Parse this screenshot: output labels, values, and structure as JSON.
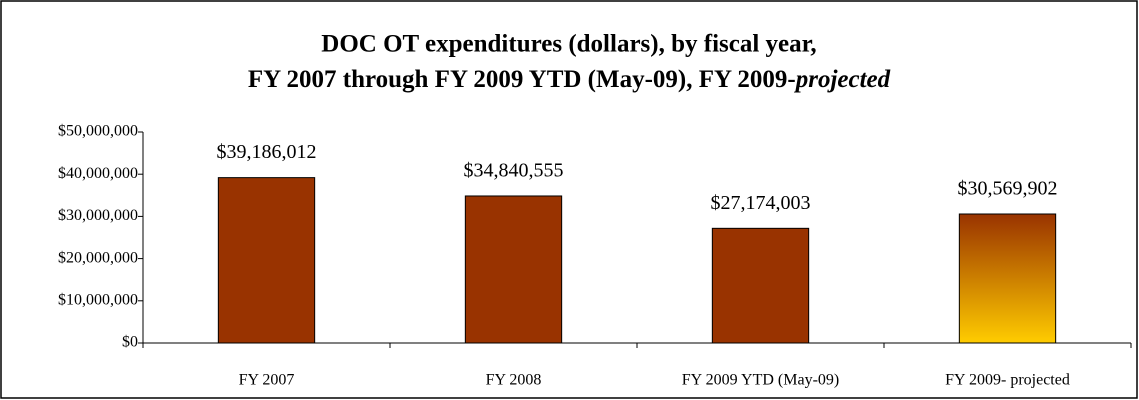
{
  "chart_data": {
    "type": "bar",
    "title": [
      "DOC OT expenditures (dollars), by fiscal year,",
      "FY 2007 through FY 2009 YTD (May-09), FY 2009-",
      "projected"
    ],
    "categories": [
      "FY 2007",
      "FY 2008",
      "FY 2009 YTD (May-09)",
      "FY 2009- projected"
    ],
    "values": [
      39186012,
      34840555,
      27174003,
      30569902
    ],
    "value_labels": [
      "$39,186,012",
      "$34,840,555",
      "$27,174,003",
      "$30,569,902"
    ],
    "colors": [
      "#993300",
      "#993300",
      "#993300",
      [
        "#993300",
        "#ffcc00"
      ]
    ],
    "ylim": [
      0,
      50000000
    ],
    "yticks": [
      {
        "value": 0,
        "label": "$0"
      },
      {
        "value": 10000000,
        "label": "$10,000,000"
      },
      {
        "value": 20000000,
        "label": "$20,000,000"
      },
      {
        "value": 30000000,
        "label": "$30,000,000"
      },
      {
        "value": 40000000,
        "label": "$40,000,000"
      },
      {
        "value": 50000000,
        "label": "$50,000,000"
      }
    ],
    "grid": false
  }
}
